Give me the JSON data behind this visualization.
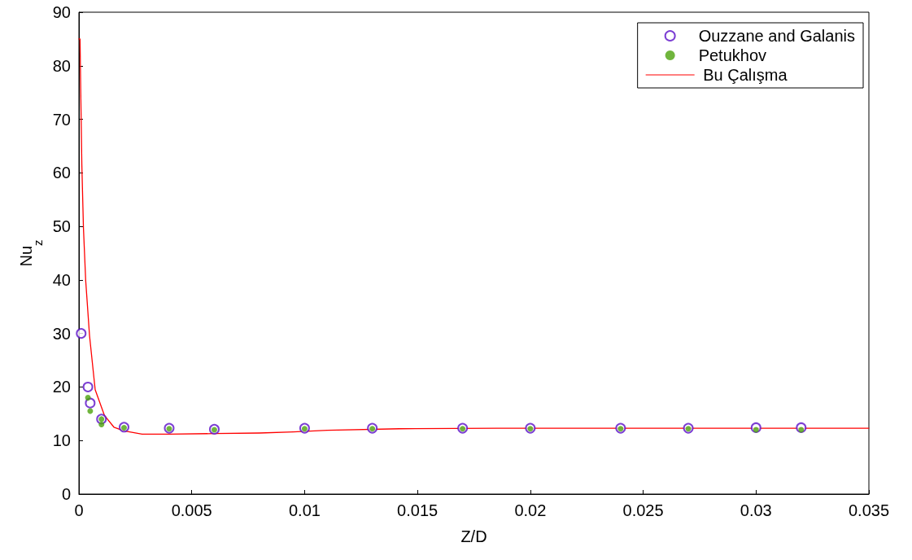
{
  "chart_data": {
    "type": "scatter",
    "xlabel": "Z/D",
    "ylabel": "Nu$_{z}$",
    "xlim": [
      0,
      0.035
    ],
    "xticks": [
      0,
      0.005,
      0.01,
      0.015,
      0.02,
      0.025,
      0.03,
      0.035
    ],
    "ylim": [
      0,
      90
    ],
    "yticks": [
      0,
      10,
      20,
      30,
      40,
      50,
      60,
      70,
      80,
      90
    ],
    "grid": false,
    "legend": "top right",
    "series": [
      {
        "name": "Ouzzane and Galanis",
        "color": "#5b0fc8",
        "marker": "circle",
        "x": [
          0.0001,
          0.0004,
          0.0005,
          0.001,
          0.002,
          0.004,
          0.006,
          0.01,
          0.013,
          0.017,
          0.02,
          0.024,
          0.027,
          0.03,
          0.032
        ],
        "values": [
          30,
          20,
          17,
          14,
          12.5,
          12.3,
          12.1,
          12.3,
          12.3,
          12.3,
          12.3,
          12.3,
          12.3,
          12.4,
          12.4
        ]
      },
      {
        "name": "Petukhov",
        "color": "#4ca30d",
        "marker": "circle",
        "x": [
          0.0004,
          0.0005,
          0.001,
          0.001,
          0.002,
          0.004,
          0.006,
          0.01,
          0.013,
          0.017,
          0.02,
          0.024,
          0.027,
          0.03,
          0.032
        ],
        "values": [
          18,
          15.5,
          14,
          13,
          12.4,
          12.2,
          12,
          12.2,
          12.2,
          12.2,
          12.2,
          12.2,
          12.2,
          12,
          12
        ]
      },
      {
        "name": " Bu Çalışma",
        "color": "#ff0000",
        "type": "line",
        "marker": "none",
        "line_style": "solid",
        "x": [
          0,
          5e-05,
          8e-05,
          0.00013,
          0.0002,
          0.0003,
          0.00047,
          0.00072,
          0.00113,
          0.00155,
          0.002,
          0.0028,
          0.004,
          0.006,
          0.008,
          0.0095,
          0.011,
          0.0142,
          0.0185,
          0.0218,
          0.025,
          0.0285,
          0.035
        ],
        "values": [
          85,
          85,
          75.5,
          61.5,
          49.8,
          39.9,
          29.6,
          19.5,
          14.7,
          12.5,
          11.8,
          11.2,
          11.2,
          11.3,
          11.4,
          11.6,
          11.9,
          12.2,
          12.3,
          12.3,
          12.3,
          12.3,
          12.3
        ]
      }
    ]
  }
}
